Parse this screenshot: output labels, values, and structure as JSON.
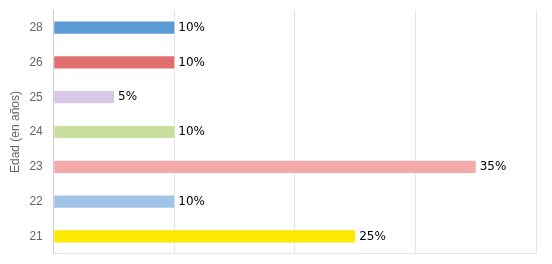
{
  "chart_data": {
    "type": "bar",
    "orientation": "horizontal",
    "categories": [
      "21",
      "22",
      "23",
      "24",
      "25",
      "26",
      "28"
    ],
    "values": [
      25,
      10,
      35,
      10,
      5,
      10,
      10
    ],
    "value_labels": [
      "25%",
      "10%",
      "35%",
      "10%",
      "5%",
      "10%",
      "10%"
    ],
    "data_labels": true,
    "colors": [
      "#FFE800",
      "#A0C4E8",
      "#F4AAAA",
      "#C8DFA0",
      "#D8C8E8",
      "#E07070",
      "#5B9BD5"
    ],
    "ylabel": "Edad (en años)",
    "xlim": [
      0,
      40
    ],
    "xticks": [
      0,
      10,
      20,
      30,
      40
    ],
    "grid": true,
    "tick_labels": "y"
  }
}
